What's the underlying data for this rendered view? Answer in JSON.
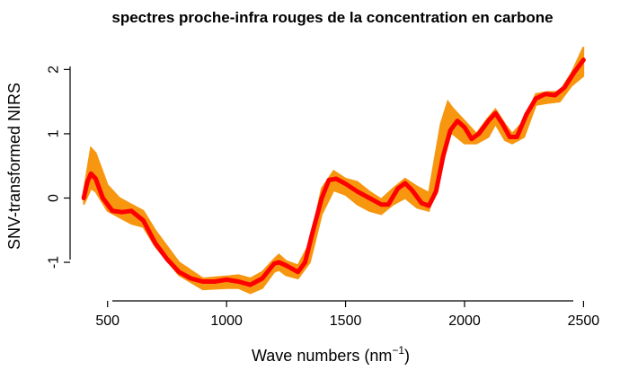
{
  "chart_data": {
    "type": "line",
    "title": "spectres proche-infra rouges de la concentration en carbone",
    "xlabel_prefix": "Wave numbers (nm",
    "xlabel_sup": "−1",
    "xlabel_suffix": ")",
    "ylabel": "SNV-transformed NIRS",
    "xlim": [
      350,
      2540
    ],
    "ylim": [
      -1.6,
      2.55
    ],
    "x_ticks": [
      500,
      1000,
      1500,
      2000,
      2500
    ],
    "x_tick_labels": [
      "500",
      "1000",
      "1500",
      "2000",
      "2500"
    ],
    "y_ticks": [
      -1,
      0,
      1,
      2
    ],
    "y_tick_labels": [
      "-1",
      "0",
      "1",
      "2"
    ],
    "band_color": "#f7960f",
    "mean_color": "#ff0000",
    "band": {
      "x": [
        400,
        430,
        450,
        500,
        550,
        600,
        650,
        700,
        800,
        900,
        1000,
        1050,
        1100,
        1150,
        1200,
        1220,
        1250,
        1300,
        1350,
        1400,
        1450,
        1500,
        1550,
        1600,
        1650,
        1700,
        1750,
        1800,
        1850,
        1900,
        1930,
        1950,
        2000,
        2050,
        2100,
        2130,
        2170,
        2200,
        2250,
        2300,
        2350,
        2400,
        2450,
        2500
      ],
      "upper": [
        0.1,
        0.78,
        0.7,
        0.2,
        0.0,
        -0.1,
        -0.2,
        -0.5,
        -1.0,
        -1.25,
        -1.22,
        -1.2,
        -1.25,
        -1.15,
        -0.95,
        -0.88,
        -0.98,
        -1.05,
        -0.7,
        0.15,
        0.42,
        0.3,
        0.25,
        0.1,
        -0.02,
        0.15,
        0.3,
        0.18,
        0.08,
        1.15,
        1.5,
        1.4,
        1.2,
        1.0,
        1.25,
        1.38,
        1.15,
        1.0,
        1.2,
        1.62,
        1.65,
        1.65,
        1.95,
        2.35
      ],
      "lower": [
        -0.1,
        0.15,
        0.1,
        -0.2,
        -0.3,
        -0.4,
        -0.45,
        -0.75,
        -1.2,
        -1.42,
        -1.4,
        -1.4,
        -1.48,
        -1.4,
        -1.15,
        -1.12,
        -1.2,
        -1.25,
        -1.0,
        -0.25,
        0.12,
        0.05,
        -0.1,
        -0.2,
        -0.25,
        -0.1,
        0.0,
        -0.15,
        -0.2,
        0.55,
        1.0,
        1.0,
        0.85,
        0.85,
        0.95,
        1.15,
        0.9,
        0.85,
        0.95,
        1.45,
        1.48,
        1.5,
        1.75,
        1.9
      ]
    },
    "series": [
      {
        "color": "#ff0000",
        "x": [
          400,
          415,
          430,
          450,
          480,
          520,
          560,
          600,
          650,
          700,
          750,
          800,
          850,
          900,
          950,
          1000,
          1050,
          1100,
          1150,
          1200,
          1220,
          1250,
          1300,
          1330,
          1360,
          1400,
          1430,
          1460,
          1500,
          1550,
          1600,
          1650,
          1680,
          1720,
          1750,
          1780,
          1820,
          1850,
          1880,
          1910,
          1940,
          1970,
          2000,
          2030,
          2060,
          2100,
          2130,
          2160,
          2190,
          2220,
          2260,
          2300,
          2340,
          2380,
          2420,
          2460,
          2500
        ],
        "y": [
          0.0,
          0.25,
          0.38,
          0.3,
          0.0,
          -0.2,
          -0.22,
          -0.2,
          -0.35,
          -0.7,
          -0.95,
          -1.15,
          -1.25,
          -1.3,
          -1.3,
          -1.27,
          -1.3,
          -1.35,
          -1.25,
          -1.02,
          -1.0,
          -1.05,
          -1.15,
          -1.0,
          -0.55,
          0.0,
          0.28,
          0.3,
          0.22,
          0.1,
          0.0,
          -0.1,
          -0.1,
          0.15,
          0.23,
          0.12,
          -0.08,
          -0.12,
          0.1,
          0.65,
          1.05,
          1.2,
          1.1,
          0.92,
          1.0,
          1.2,
          1.32,
          1.15,
          0.95,
          0.95,
          1.3,
          1.55,
          1.62,
          1.6,
          1.72,
          1.95,
          2.15
        ]
      }
    ]
  }
}
